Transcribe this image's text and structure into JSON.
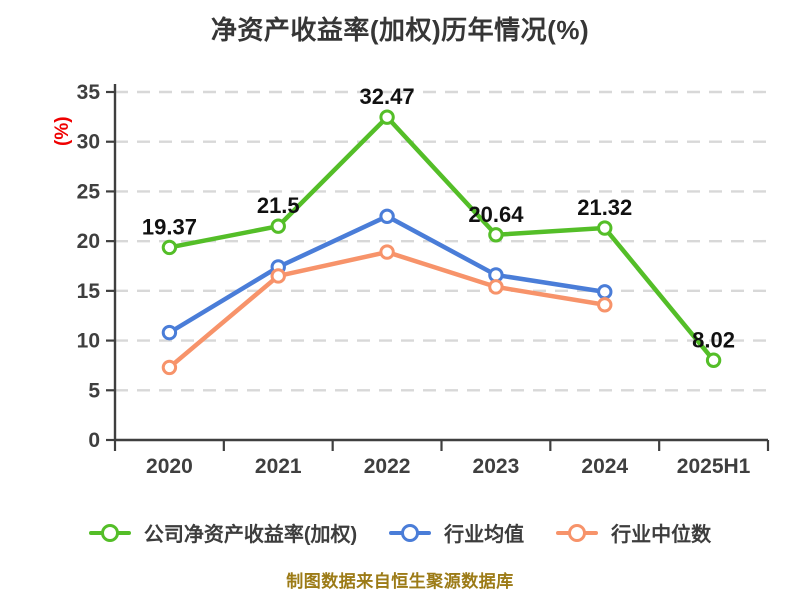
{
  "chart_data": {
    "type": "line",
    "title": "净资产收益率(加权)历年情况(%)",
    "categories": [
      "2020",
      "2021",
      "2022",
      "2023",
      "2024",
      "2025H1"
    ],
    "series": [
      {
        "name": "公司净资产收益率(加权)",
        "color": "#54be28",
        "values": [
          19.37,
          21.5,
          32.47,
          20.64,
          21.32,
          8.02
        ],
        "labels_shown": true
      },
      {
        "name": "行业均值",
        "color": "#4a7dd8",
        "values": [
          10.8,
          17.4,
          22.5,
          16.6,
          14.9,
          null
        ],
        "labels_shown": false
      },
      {
        "name": "行业中位数",
        "color": "#f7936a",
        "values": [
          7.3,
          16.5,
          18.9,
          15.4,
          13.6,
          null
        ],
        "labels_shown": false
      }
    ],
    "xlabel": "",
    "ylabel": "(%)",
    "ylim": [
      0,
      35
    ],
    "ytick_step": 5,
    "yticks": [
      0,
      5,
      10,
      15,
      20,
      25,
      30,
      35
    ],
    "grid": "horizontal-dashed",
    "legend_position": "bottom"
  },
  "footer_note": "制图数据来自恒生聚源数据库",
  "colors": {
    "background": "#ffffff",
    "grid": "#d8d8d8",
    "axis": "#3f3f3f",
    "tick_text": "#3f3f3f",
    "data_label": "#111111",
    "title": "#363636",
    "ylabel": "#ef0000",
    "footer": "#9c7b17",
    "legend_text": "#3d3d3d"
  }
}
